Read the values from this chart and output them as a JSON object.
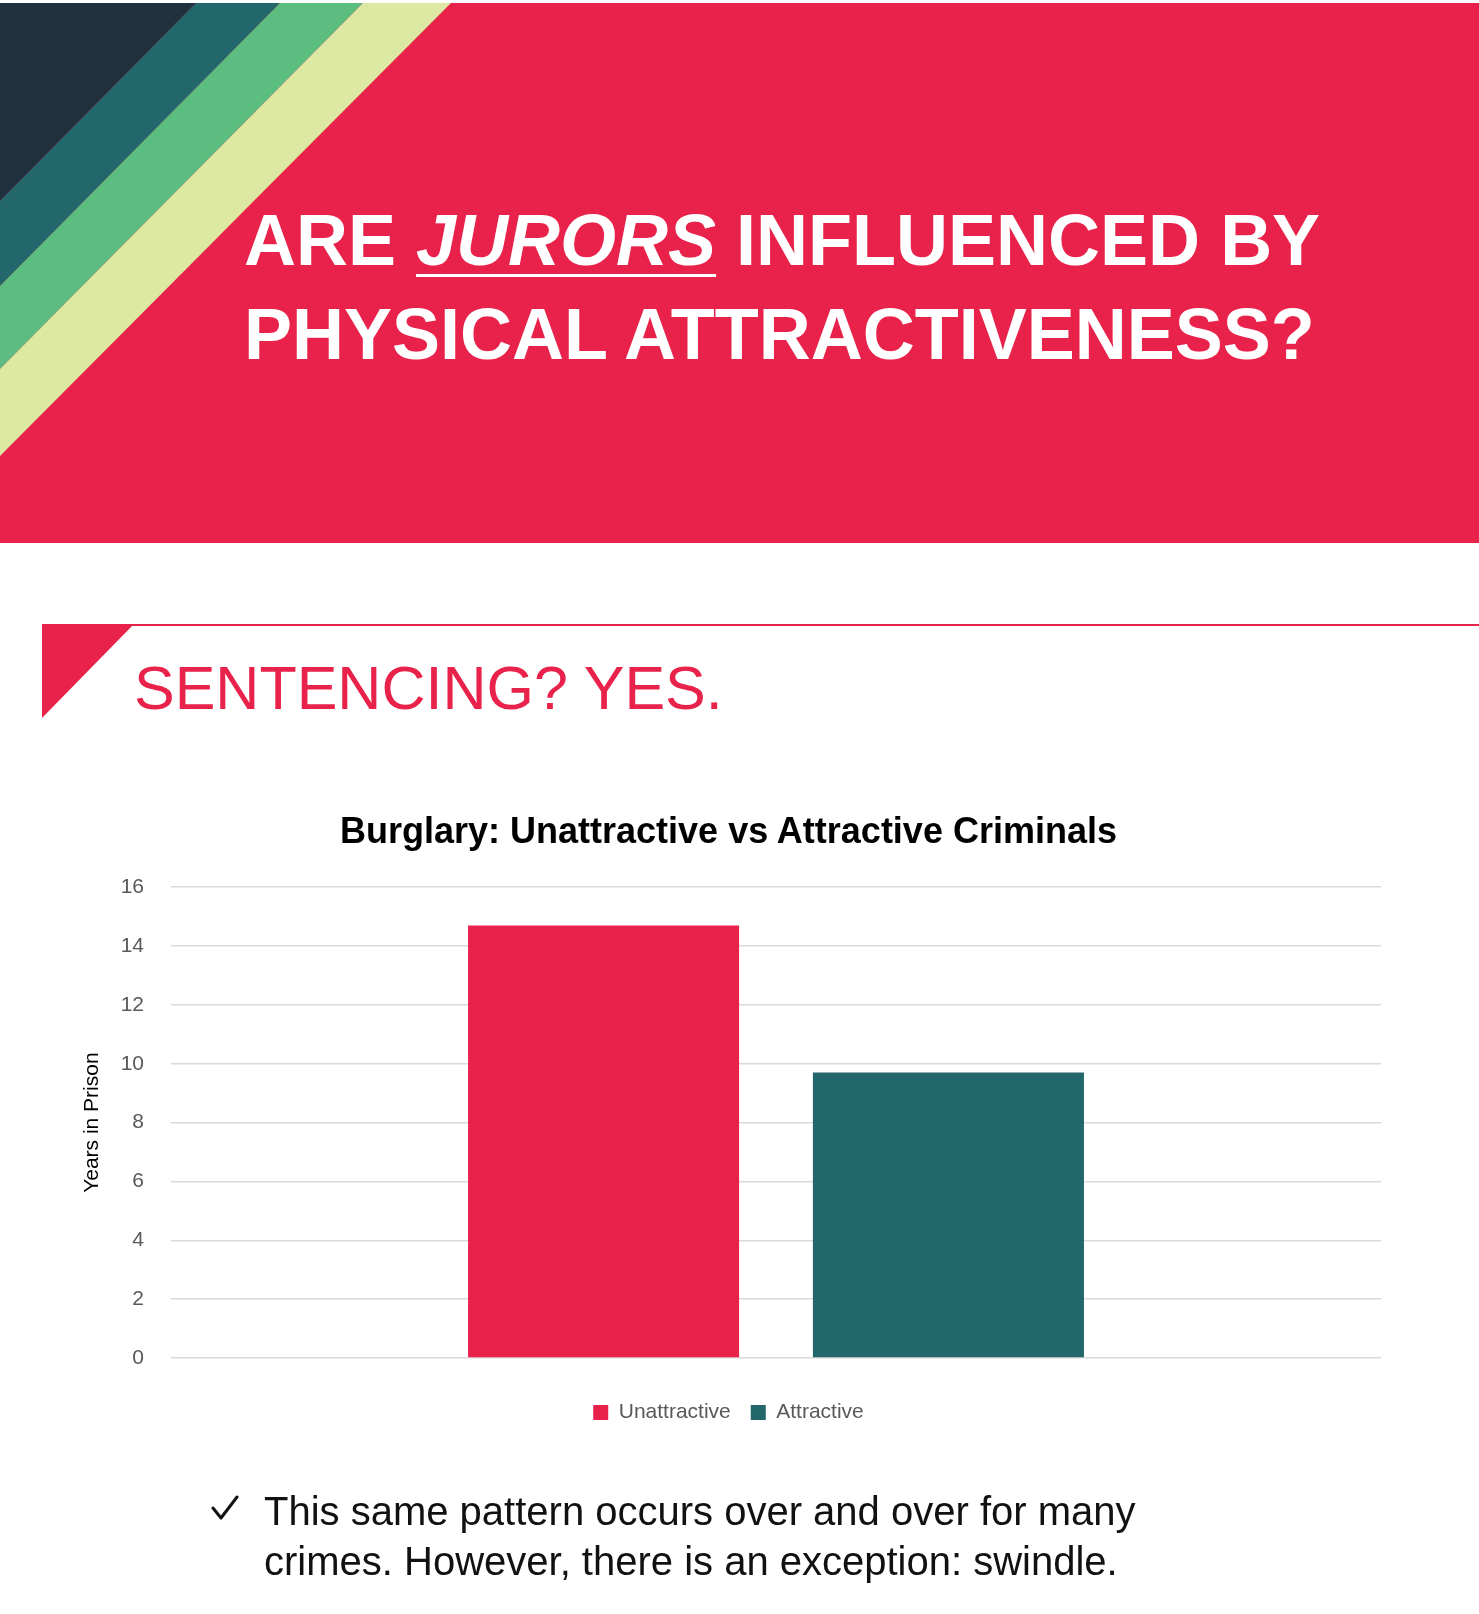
{
  "chart_data": {
    "type": "bar",
    "title": "Burglary: Unattractive vs Attractive Criminals",
    "ylabel": "Years in Prison",
    "categories": [
      null
    ],
    "series": [
      {
        "name": "Unattractive",
        "color": "#e8224a",
        "values": [
          14.7
        ]
      },
      {
        "name": "Attractive",
        "color": "#22676b",
        "values": [
          9.7
        ]
      }
    ],
    "ylim": [
      0,
      16
    ],
    "yticks": [
      0,
      2,
      4,
      6,
      8,
      10,
      12,
      14,
      16
    ],
    "grid": "y",
    "legend": "bottom",
    "tick_labels": "y",
    "annotations": [
      "ARE JURORS INFLUENCED BY PHYSICAL ATTRACTIVENESS?",
      "SENTENCING? YES.",
      "This same pattern occurs over and over for many crimes. However, there is an exception: swindle."
    ]
  }
}
